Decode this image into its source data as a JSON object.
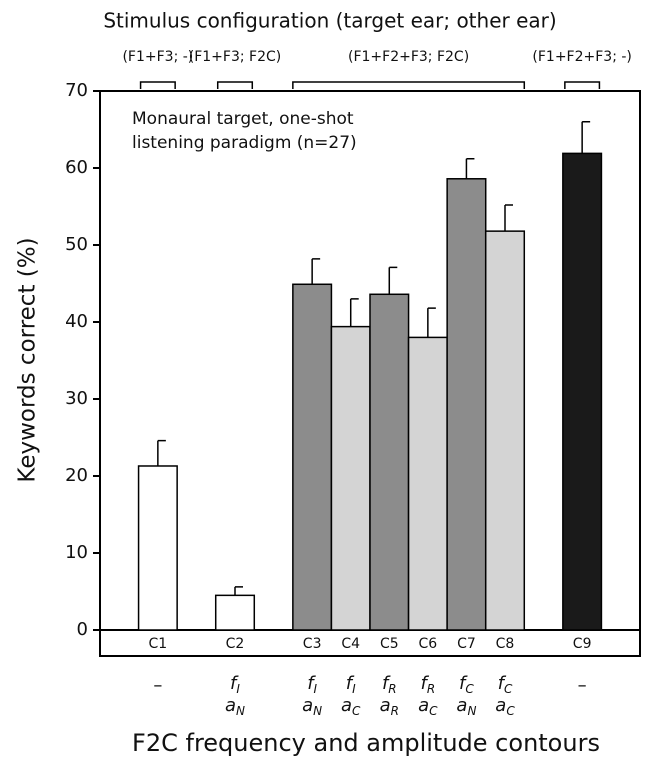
{
  "chart_data": {
    "type": "bar",
    "title": "Stimulus configuration (target ear; other ear)",
    "annotation": [
      "Monaural target, one-shot",
      "listening paradigm (n=27)"
    ],
    "ylabel": "Keywords correct (%)",
    "xlabel": "F2C frequency and amplitude contours",
    "ylim": [
      0,
      70
    ],
    "yticks": [
      0,
      10,
      20,
      30,
      40,
      50,
      60,
      70
    ],
    "groups": [
      {
        "label": "(F1+F3; -)",
        "bars": [
          {
            "category": "C1",
            "value": 21.3,
            "error": 3.3,
            "color": "#ffffff",
            "contour": "–"
          }
        ]
      },
      {
        "label": "(F1+F3; F2C)",
        "bars": [
          {
            "category": "C2",
            "value": 4.5,
            "error": 1.1,
            "color": "#ffffff",
            "contour": {
              "freq": [
                "f",
                "I"
              ],
              "amp": [
                "a",
                "N"
              ]
            }
          }
        ]
      },
      {
        "label": "(F1+F2+F3; F2C)",
        "bars": [
          {
            "category": "C3",
            "value": 44.9,
            "error": 3.3,
            "color": "#8c8c8c",
            "contour": {
              "freq": [
                "f",
                "I"
              ],
              "amp": [
                "a",
                "N"
              ]
            }
          },
          {
            "category": "C4",
            "value": 39.4,
            "error": 3.6,
            "color": "#d4d4d4",
            "contour": {
              "freq": [
                "f",
                "I"
              ],
              "amp": [
                "a",
                "C"
              ]
            }
          },
          {
            "category": "C5",
            "value": 43.6,
            "error": 3.5,
            "color": "#8c8c8c",
            "contour": {
              "freq": [
                "f",
                "R"
              ],
              "amp": [
                "a",
                "R"
              ]
            }
          },
          {
            "category": "C6",
            "value": 38.0,
            "error": 3.8,
            "color": "#d4d4d4",
            "contour": {
              "freq": [
                "f",
                "R"
              ],
              "amp": [
                "a",
                "C"
              ]
            }
          },
          {
            "category": "C7",
            "value": 58.6,
            "error": 2.6,
            "color": "#8c8c8c",
            "contour": {
              "freq": [
                "f",
                "C"
              ],
              "amp": [
                "a",
                "N"
              ]
            }
          },
          {
            "category": "C8",
            "value": 51.8,
            "error": 3.4,
            "color": "#d4d4d4",
            "contour": {
              "freq": [
                "f",
                "C"
              ],
              "amp": [
                "a",
                "C"
              ]
            }
          }
        ]
      },
      {
        "label": "(F1+F2+F3; -)",
        "bars": [
          {
            "category": "C9",
            "value": 61.9,
            "error": 4.1,
            "color": "#1a1a1a",
            "contour": "–"
          }
        ]
      }
    ]
  }
}
